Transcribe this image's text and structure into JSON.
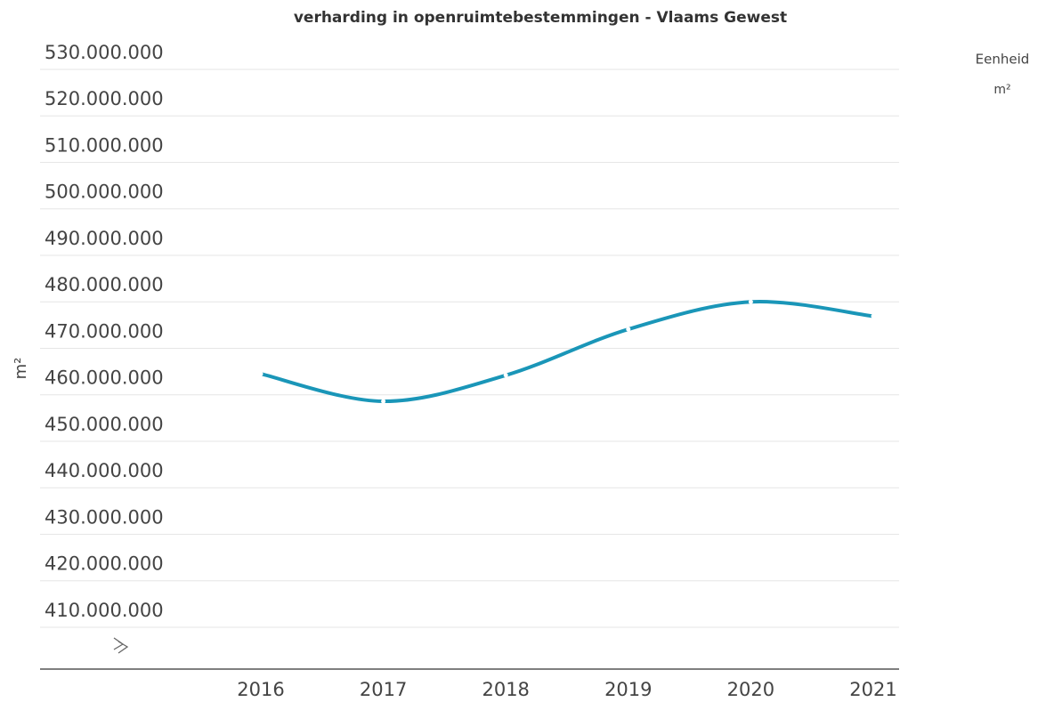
{
  "chart_data": {
    "type": "line",
    "title": "verharding in openruimtebestemmingen - Vlaams Gewest",
    "y_label": "m²",
    "legend_title": "Eenheid",
    "legend_label": "m²",
    "categories": [
      "2016",
      "2017",
      "2018",
      "2019",
      "2020",
      "2021"
    ],
    "series": [
      {
        "name": "m²",
        "color": "#1a96b8",
        "values": [
          464500000,
          458600000,
          464200000,
          474100000,
          480000000,
          476900000
        ]
      }
    ],
    "ylim": [
      401000000,
      530000000
    ],
    "yticks": [
      {
        "value": 410000000,
        "label": "410.000.000"
      },
      {
        "value": 420000000,
        "label": "420.000.000"
      },
      {
        "value": 430000000,
        "label": "430.000.000"
      },
      {
        "value": 440000000,
        "label": "440.000.000"
      },
      {
        "value": 450000000,
        "label": "450.000.000"
      },
      {
        "value": 460000000,
        "label": "460.000.000"
      },
      {
        "value": 470000000,
        "label": "470.000.000"
      },
      {
        "value": 480000000,
        "label": "480.000.000"
      },
      {
        "value": 490000000,
        "label": "490.000.000"
      },
      {
        "value": 500000000,
        "label": "500.000.000"
      },
      {
        "value": 510000000,
        "label": "510.000.000"
      },
      {
        "value": 520000000,
        "label": "520.000.000"
      },
      {
        "value": 530000000,
        "label": "530.000.000"
      }
    ],
    "grid": true
  }
}
